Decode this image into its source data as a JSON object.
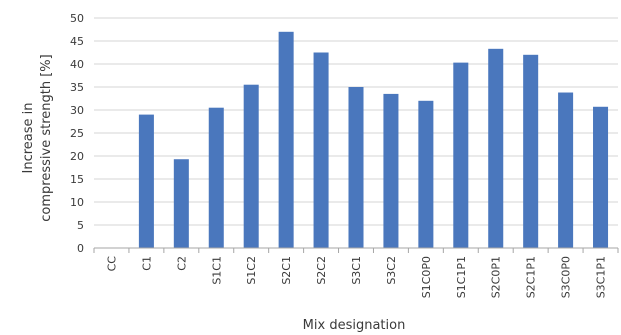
{
  "chart_data": {
    "type": "bar",
    "title": "",
    "xlabel": "Mix designation",
    "ylabel_lines": [
      "Increase in",
      "compressive strength  [%]"
    ],
    "ylim": [
      0,
      50
    ],
    "yticks": [
      "0",
      "5",
      "10",
      "15",
      "20",
      "25",
      "30",
      "35",
      "40",
      "45",
      "50"
    ],
    "grid": true,
    "legend": "none",
    "bar_color": "#4a77bd",
    "grid_color": "#d4d4d4",
    "categories": [
      "CC",
      "C1",
      "C2",
      "S1C1",
      "S1C2",
      "S2C1",
      "S2C2",
      "S3C1",
      "S3C2",
      "S1C0P0",
      "S1C1P1",
      "S2C0P1",
      "S2C1P1",
      "S3C0P0",
      "S3C1P1"
    ],
    "values": [
      0,
      29,
      19.3,
      30.5,
      35.5,
      47,
      42.5,
      35,
      33.5,
      32,
      40.3,
      43.3,
      42,
      33.8,
      30.7
    ]
  }
}
